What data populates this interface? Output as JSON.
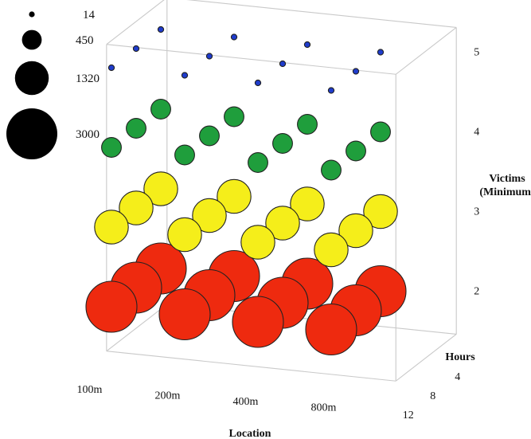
{
  "chart_data": {
    "type": "scatter",
    "subtype": "3d-bubble",
    "title": "",
    "axes": {
      "x": {
        "label": "Location",
        "categories": [
          "100m",
          "200m",
          "400m",
          "800m"
        ]
      },
      "z": {
        "label": "Hours",
        "values": [
          12,
          8,
          4
        ]
      },
      "y": {
        "label_lines": [
          "Victims",
          "(Minimum)"
        ],
        "ticks": [
          2,
          3,
          4,
          5
        ]
      }
    },
    "size_legend": [
      {
        "label": "14",
        "value": 14
      },
      {
        "label": "450",
        "value": 450
      },
      {
        "label": "1320",
        "value": 1320
      },
      {
        "label": "3000",
        "value": 3000
      }
    ],
    "levels": [
      {
        "victims": 2,
        "color": "#ee2a0f",
        "size_value": 3000
      },
      {
        "victims": 3,
        "color": "#f5ee1a",
        "size_value": 1320
      },
      {
        "victims": 4,
        "color": "#1f9e3c",
        "size_value": 450
      },
      {
        "victims": 5,
        "color": "#1f3ccc",
        "size_value": 14
      }
    ],
    "point_columns": [
      "location",
      "hours",
      "victims"
    ],
    "points": [
      [
        "100m",
        12,
        2
      ],
      [
        "100m",
        8,
        2
      ],
      [
        "100m",
        4,
        2
      ],
      [
        "200m",
        12,
        2
      ],
      [
        "200m",
        8,
        2
      ],
      [
        "200m",
        4,
        2
      ],
      [
        "400m",
        12,
        2
      ],
      [
        "400m",
        8,
        2
      ],
      [
        "400m",
        4,
        2
      ],
      [
        "800m",
        12,
        2
      ],
      [
        "800m",
        8,
        2
      ],
      [
        "800m",
        4,
        2
      ],
      [
        "100m",
        12,
        3
      ],
      [
        "100m",
        8,
        3
      ],
      [
        "100m",
        4,
        3
      ],
      [
        "200m",
        12,
        3
      ],
      [
        "200m",
        8,
        3
      ],
      [
        "200m",
        4,
        3
      ],
      [
        "400m",
        12,
        3
      ],
      [
        "400m",
        8,
        3
      ],
      [
        "400m",
        4,
        3
      ],
      [
        "800m",
        12,
        3
      ],
      [
        "800m",
        8,
        3
      ],
      [
        "800m",
        4,
        3
      ],
      [
        "100m",
        12,
        4
      ],
      [
        "100m",
        8,
        4
      ],
      [
        "100m",
        4,
        4
      ],
      [
        "200m",
        12,
        4
      ],
      [
        "200m",
        8,
        4
      ],
      [
        "200m",
        4,
        4
      ],
      [
        "400m",
        12,
        4
      ],
      [
        "400m",
        8,
        4
      ],
      [
        "400m",
        4,
        4
      ],
      [
        "800m",
        12,
        4
      ],
      [
        "800m",
        8,
        4
      ],
      [
        "800m",
        4,
        4
      ],
      [
        "100m",
        12,
        5
      ],
      [
        "100m",
        8,
        5
      ],
      [
        "100m",
        4,
        5
      ],
      [
        "200m",
        12,
        5
      ],
      [
        "200m",
        8,
        5
      ],
      [
        "200m",
        4,
        5
      ],
      [
        "400m",
        12,
        5
      ],
      [
        "400m",
        8,
        5
      ],
      [
        "400m",
        4,
        5
      ],
      [
        "800m",
        12,
        5
      ],
      [
        "800m",
        8,
        5
      ],
      [
        "800m",
        4,
        5
      ]
    ]
  }
}
